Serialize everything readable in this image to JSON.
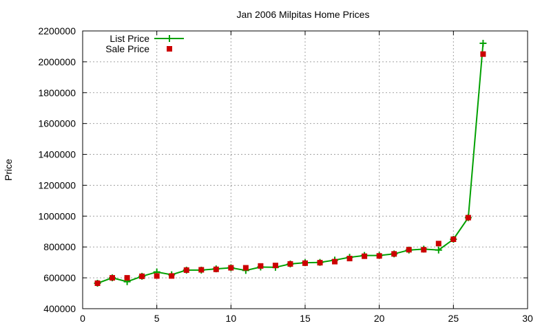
{
  "chart_data": {
    "type": "line",
    "title": "Jan 2006 Milpitas Home Prices",
    "xlabel": "",
    "ylabel": "Price",
    "xlim": [
      0,
      30
    ],
    "ylim": [
      400000,
      2200000
    ],
    "xticks": [
      "0",
      "5",
      "10",
      "15",
      "20",
      "25",
      "30"
    ],
    "yticks": [
      "400000",
      "600000",
      "800000",
      "1000000",
      "1200000",
      "1400000",
      "1600000",
      "1800000",
      "2000000",
      "2200000"
    ],
    "grid": true,
    "legend_position": "top-left",
    "series": [
      {
        "name": "List Price",
        "style": "line-with-plus-markers",
        "color": "#00a000",
        "x": [
          1,
          2,
          3,
          4,
          5,
          6,
          7,
          8,
          9,
          10,
          11,
          12,
          13,
          14,
          15,
          16,
          17,
          18,
          19,
          20,
          21,
          22,
          23,
          24,
          25,
          26,
          27
        ],
        "y": [
          565000,
          600000,
          575000,
          610000,
          638000,
          620000,
          650000,
          650000,
          658000,
          665000,
          648000,
          670000,
          668000,
          690000,
          698000,
          700000,
          715000,
          733000,
          745000,
          745000,
          755000,
          780000,
          786000,
          780000,
          850000,
          990000,
          2120000
        ]
      },
      {
        "name": "Sale Price",
        "style": "square-markers",
        "color": "#cc0000",
        "x": [
          1,
          2,
          3,
          4,
          5,
          6,
          7,
          8,
          9,
          10,
          11,
          12,
          13,
          14,
          15,
          16,
          17,
          18,
          19,
          20,
          21,
          22,
          23,
          24,
          25,
          26,
          27
        ],
        "y": [
          565000,
          600000,
          600000,
          610000,
          612000,
          612000,
          650000,
          652000,
          655000,
          665000,
          665000,
          677000,
          680000,
          690000,
          695000,
          698000,
          705000,
          725000,
          740000,
          742000,
          755000,
          782000,
          782000,
          822000,
          850000,
          990000,
          2050000
        ]
      }
    ]
  }
}
